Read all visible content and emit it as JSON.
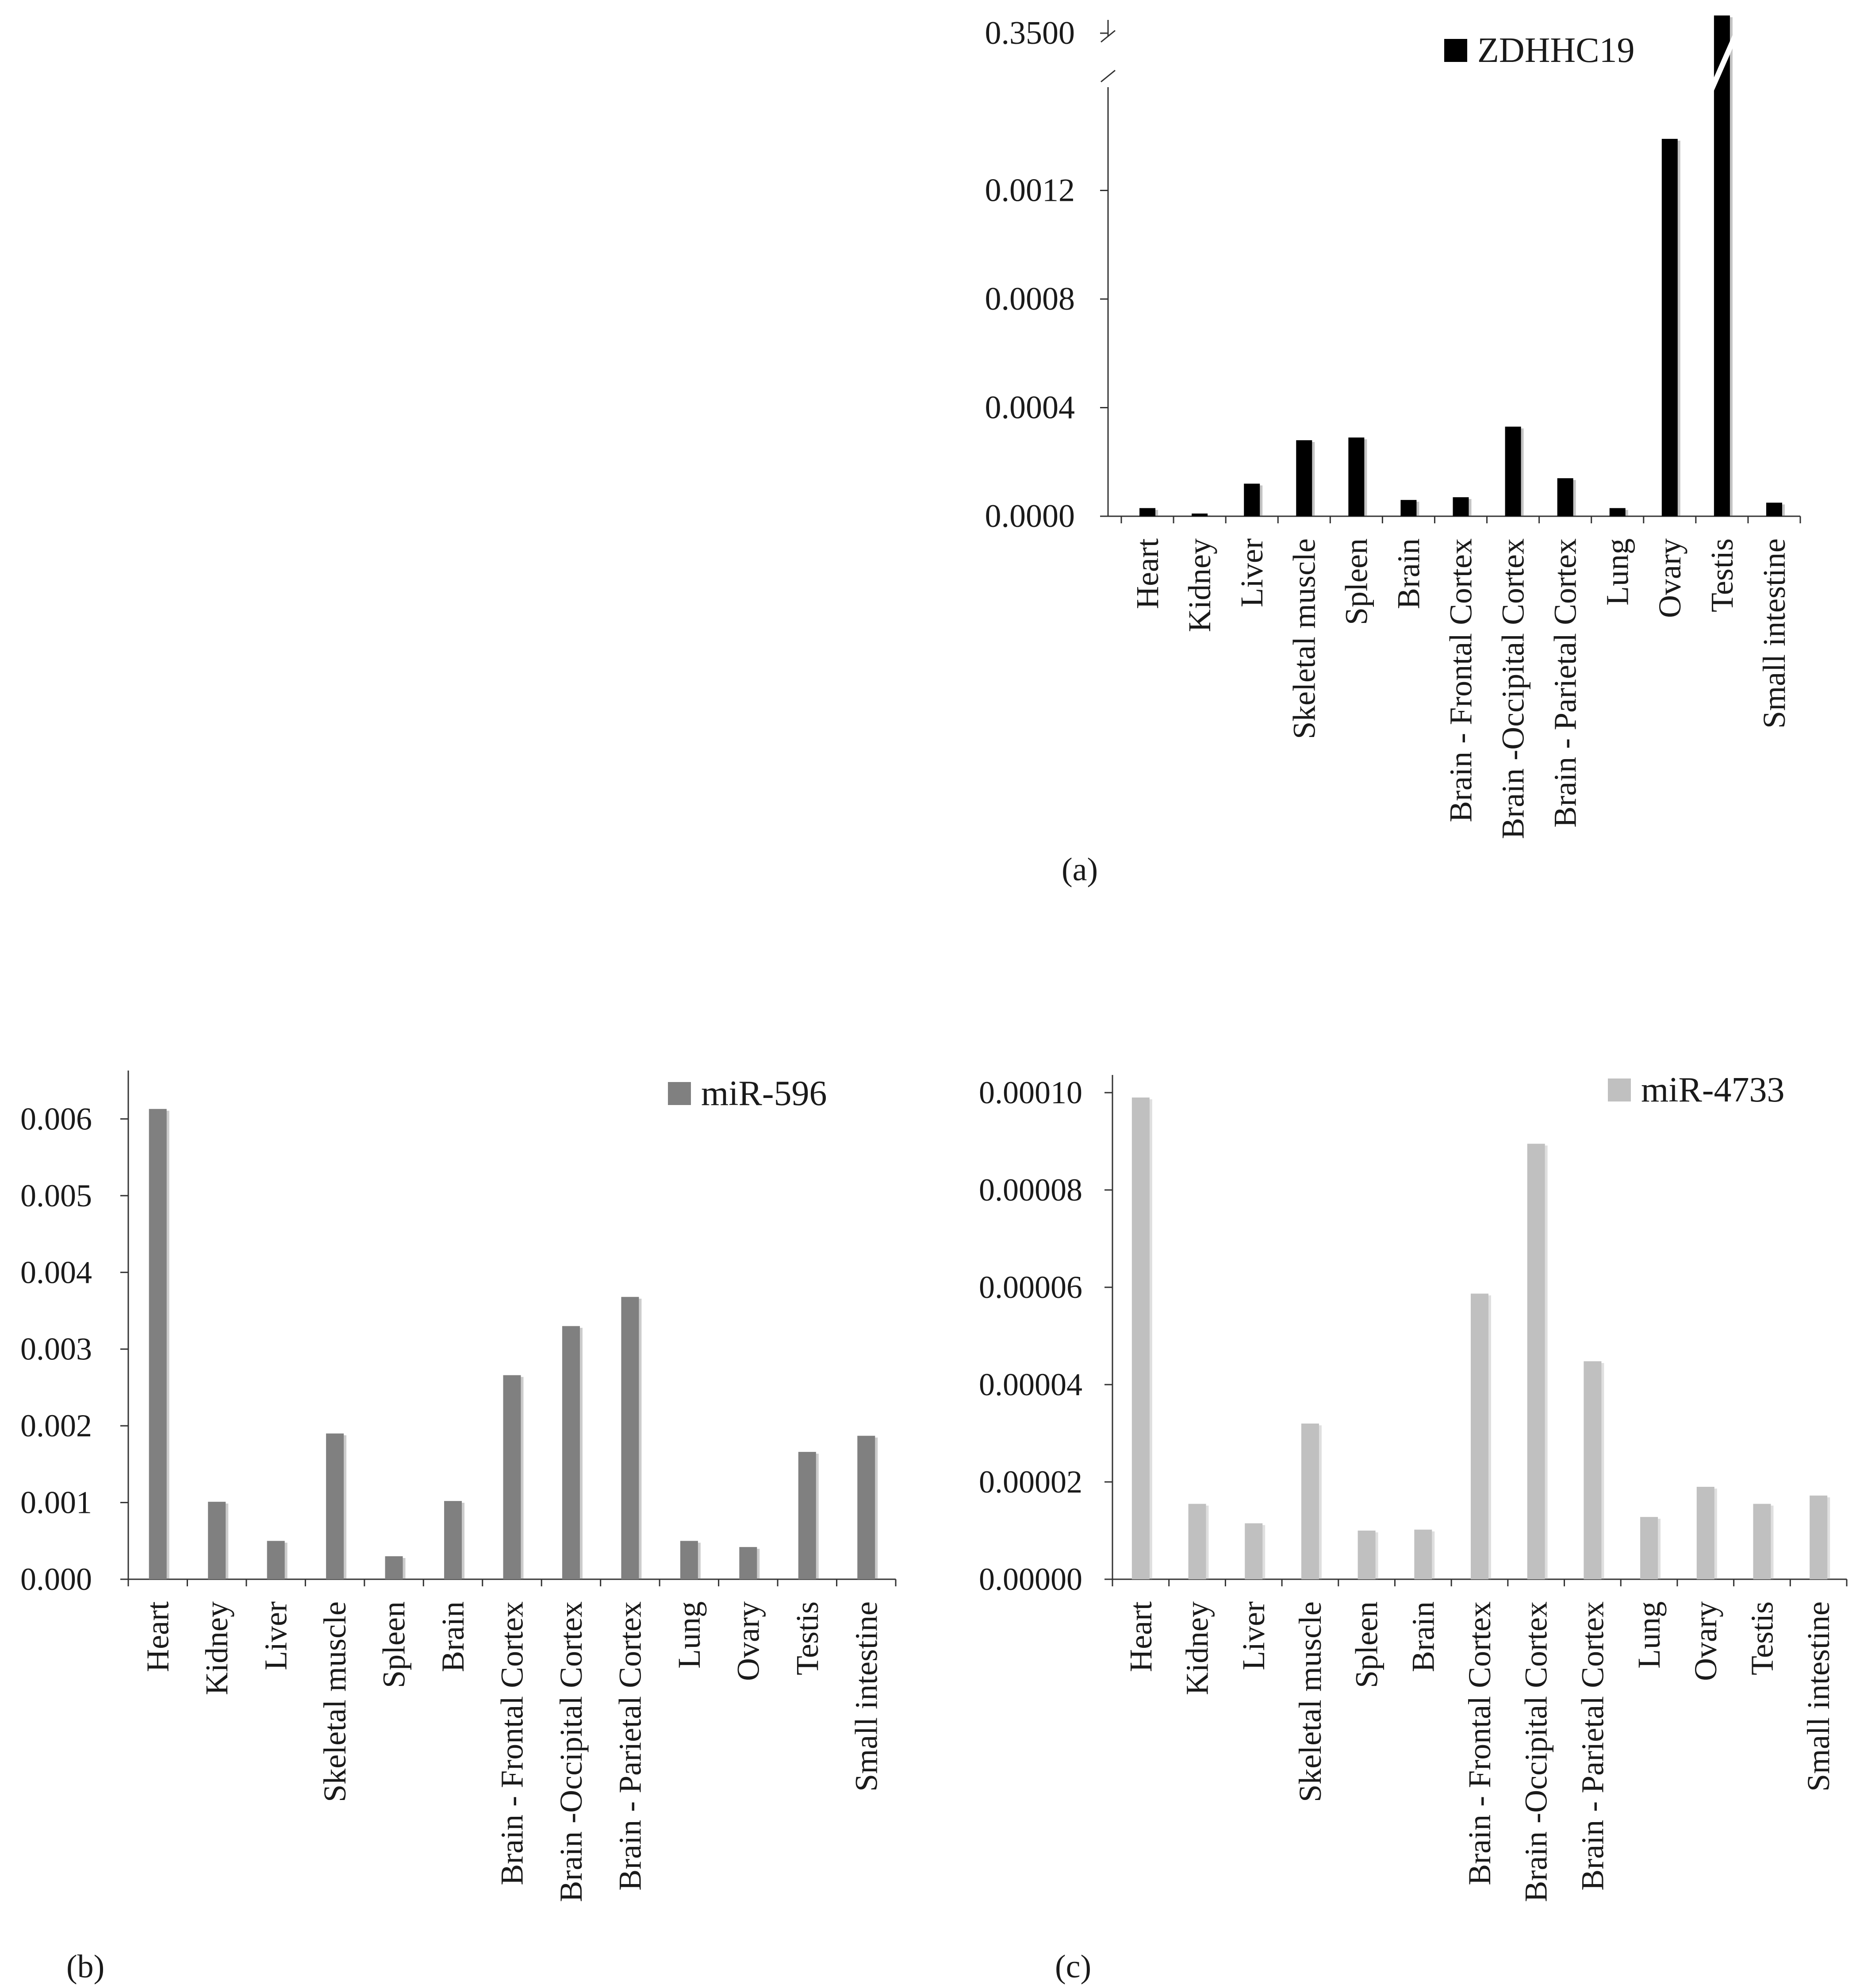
{
  "chart_data": [
    {
      "id": "a",
      "type": "bar",
      "panel_label": "(a)",
      "legend": "ZDHHC19",
      "legend_position": "top-right",
      "color": "#000000",
      "categories": [
        "Heart",
        "Kidney",
        "Liver",
        "Skeletal muscle",
        "Spleen",
        "Brain",
        "Brain - Frontal Cortex",
        "Brain -Occipital Cortex",
        "Brain - Parietal Cortex",
        "Lung",
        "Ovary",
        "Testis",
        "Small intestine"
      ],
      "values": [
        3e-05,
        1e-05,
        0.00012,
        0.00028,
        0.00029,
        6e-05,
        7e-05,
        0.00033,
        0.00014,
        3e-05,
        0.00139,
        0.35,
        5e-05
      ],
      "ylim": [
        0,
        0.0016
      ],
      "yticks": [
        0,
        0.0004,
        0.0008,
        0.0012
      ],
      "ytick_labels": [
        "0.0000",
        "0.0004",
        "0.0008",
        "0.0012"
      ],
      "axis_break": {
        "upper_label": "0.3500",
        "upper_value": 0.35
      },
      "xlabel": "",
      "ylabel": "",
      "grid": false
    },
    {
      "id": "b",
      "type": "bar",
      "panel_label": "(b)",
      "legend": "miR-596",
      "legend_position": "top-right",
      "color": "#808080",
      "categories": [
        "Heart",
        "Kidney",
        "Liver",
        "Skeletal muscle",
        "Spleen",
        "Brain",
        "Brain - Frontal Cortex",
        "Brain -Occipital Cortex",
        "Brain - Parietal Cortex",
        "Lung",
        "Ovary",
        "Testis",
        "Small intestine"
      ],
      "values": [
        0.00613,
        0.00101,
        0.0005,
        0.0019,
        0.0003,
        0.00102,
        0.00266,
        0.0033,
        0.00368,
        0.0005,
        0.00042,
        0.00166,
        0.00187
      ],
      "ylim": [
        0,
        0.0064
      ],
      "yticks": [
        0,
        0.001,
        0.002,
        0.003,
        0.004,
        0.005,
        0.006
      ],
      "ytick_labels": [
        "0.000",
        "0.001",
        "0.002",
        "0.003",
        "0.004",
        "0.005",
        "0.006"
      ],
      "xlabel": "",
      "ylabel": "",
      "grid": false
    },
    {
      "id": "c",
      "type": "bar",
      "panel_label": "(c)",
      "legend": "miR-4733",
      "legend_position": "top-right",
      "color": "#c0c0c0",
      "categories": [
        "Heart",
        "Kidney",
        "Liver",
        "Skeletal muscle",
        "Spleen",
        "Brain",
        "Brain - Frontal Cortex",
        "Brain -Occipital Cortex",
        "Brain - Parietal Cortex",
        "Lung",
        "Ovary",
        "Testis",
        "Small intestine"
      ],
      "values": [
        9.9e-05,
        1.55e-05,
        1.15e-05,
        3.2e-05,
        1e-05,
        1.02e-05,
        5.87e-05,
        8.95e-05,
        4.48e-05,
        1.28e-05,
        1.9e-05,
        1.55e-05,
        1.72e-05
      ],
      "ylim": [
        0,
        0.0001
      ],
      "yticks": [
        0,
        2e-05,
        4e-05,
        6e-05,
        8e-05,
        0.0001
      ],
      "ytick_labels": [
        "0.00000",
        "0.00002",
        "0.00004",
        "0.00006",
        "0.00008",
        "0.00010"
      ],
      "xlabel": "",
      "ylabel": "",
      "grid": false
    }
  ]
}
